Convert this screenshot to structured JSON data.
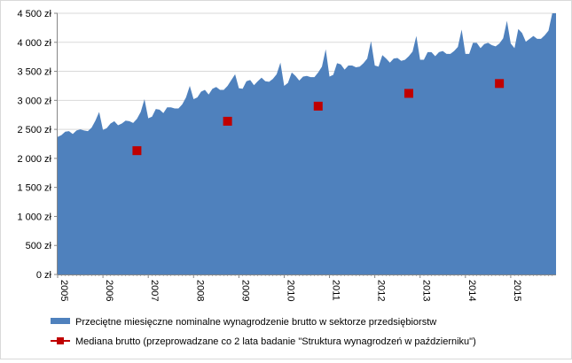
{
  "chart_data": {
    "type": "area",
    "title": "",
    "xlabel": "",
    "ylabel": "",
    "ylim": [
      0,
      4500
    ],
    "y_ticks": [
      "0 zł",
      "500 zł",
      "1 000 zł",
      "1 500 zł",
      "2 000 zł",
      "2 500 zł",
      "3 000 zł",
      "3 500 zł",
      "4 000 zł",
      "4 500 zł"
    ],
    "y_tick_values": [
      0,
      500,
      1000,
      1500,
      2000,
      2500,
      3000,
      3500,
      4000,
      4500
    ],
    "x_ticks": [
      "2005",
      "2006",
      "2007",
      "2008",
      "2009",
      "2010",
      "2011",
      "2012",
      "2013",
      "2014",
      "2015"
    ],
    "grid": "horizontal",
    "legend_position": "bottom",
    "series": [
      {
        "name": "Przeciętne miesięczne nominalne wynagrodzenie brutto w sektorze przedsiębiorstw",
        "type": "area",
        "color": "#4f81bd",
        "start": "2005-01",
        "values": [
          2370,
          2400,
          2460,
          2470,
          2420,
          2480,
          2500,
          2480,
          2470,
          2530,
          2650,
          2800,
          2490,
          2520,
          2600,
          2640,
          2570,
          2600,
          2650,
          2640,
          2610,
          2680,
          2800,
          3020,
          2690,
          2720,
          2850,
          2840,
          2780,
          2880,
          2880,
          2860,
          2860,
          2930,
          3050,
          3250,
          3020,
          3050,
          3150,
          3180,
          3100,
          3200,
          3230,
          3180,
          3180,
          3250,
          3350,
          3450,
          3210,
          3200,
          3330,
          3350,
          3260,
          3330,
          3390,
          3330,
          3320,
          3370,
          3450,
          3650,
          3250,
          3300,
          3480,
          3420,
          3340,
          3410,
          3420,
          3400,
          3400,
          3480,
          3580,
          3880,
          3410,
          3440,
          3640,
          3620,
          3530,
          3600,
          3600,
          3570,
          3580,
          3640,
          3720,
          4020,
          3600,
          3580,
          3780,
          3720,
          3650,
          3720,
          3730,
          3680,
          3700,
          3760,
          3840,
          4110,
          3700,
          3700,
          3830,
          3830,
          3760,
          3830,
          3850,
          3800,
          3800,
          3850,
          3920,
          4220,
          3800,
          3800,
          3990,
          3990,
          3900,
          3970,
          3990,
          3950,
          3930,
          3980,
          4070,
          4370,
          3980,
          3900,
          4230,
          4160,
          4010,
          4060,
          4110,
          4060,
          4060,
          4120,
          4200,
          4500
        ]
      },
      {
        "name": "Mediana brutto (przeprowadzane co 2 lata badanie  \"Struktura wynagrodzeń w październiku\")",
        "type": "scatter",
        "color": "#c00000",
        "points": [
          {
            "x": "2006-10",
            "y": 2133
          },
          {
            "x": "2008-10",
            "y": 2640
          },
          {
            "x": "2010-10",
            "y": 2900
          },
          {
            "x": "2012-10",
            "y": 3120
          },
          {
            "x": "2014-10",
            "y": 3290
          }
        ]
      }
    ]
  }
}
